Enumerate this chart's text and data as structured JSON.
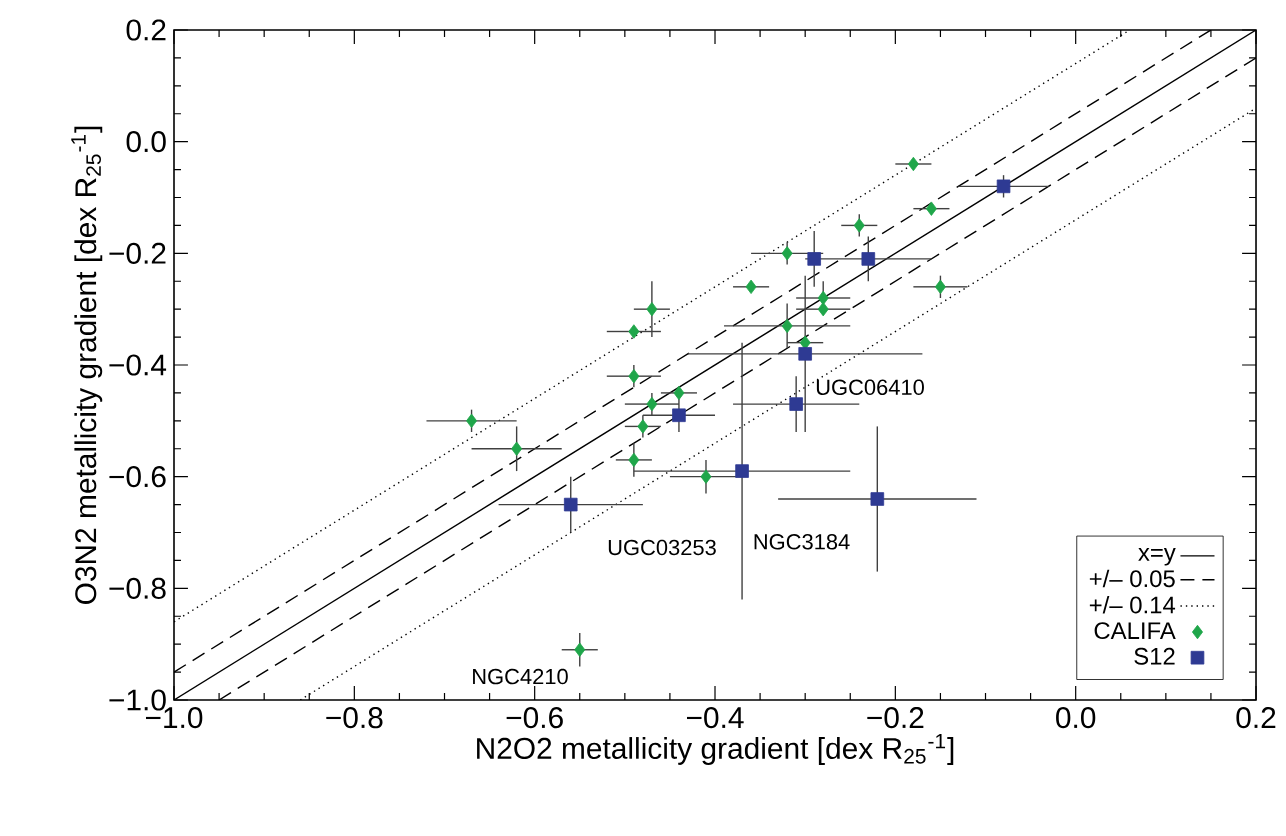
{
  "chart_data": {
    "type": "scatter",
    "xlabel": "N2O2 metallicity gradient [dex R$_{25}$$^{-1}$]",
    "ylabel": "O3N2 metallicity gradient [dex R$_{25}$$^{-1}$]",
    "xlim": [
      -1.0,
      0.2
    ],
    "ylim": [
      -1.0,
      0.2
    ],
    "xticks": [
      {
        "value": -1.0,
        "label": "−1.0"
      },
      {
        "value": -0.8,
        "label": "−0.8"
      },
      {
        "value": -0.6,
        "label": "−0.6"
      },
      {
        "value": -0.4,
        "label": "−0.4"
      },
      {
        "value": -0.2,
        "label": "−0.2"
      },
      {
        "value": 0.0,
        "label": "0.0"
      },
      {
        "value": 0.2,
        "label": "0.2"
      }
    ],
    "yticks": [
      {
        "value": -1.0,
        "label": "−1.0"
      },
      {
        "value": -0.8,
        "label": "−0.8"
      },
      {
        "value": -0.6,
        "label": "−0.6"
      },
      {
        "value": -0.4,
        "label": "−0.4"
      },
      {
        "value": -0.2,
        "label": "−0.2"
      },
      {
        "value": 0.0,
        "label": "0.0"
      },
      {
        "value": 0.2,
        "label": "0.2"
      }
    ],
    "legend": "bottom right",
    "series": [
      {
        "name": "x=y",
        "type": "line",
        "color": "#000000",
        "line_style": "solid",
        "marker": "none",
        "x": [
          -1.0,
          0.2
        ],
        "values": [
          -1.0,
          0.2
        ]
      },
      {
        "name": "+/– 0.05",
        "type": "line",
        "color": "#000000",
        "line_style": "dashed",
        "marker": "none",
        "x": [
          -1.0,
          0.15
        ],
        "values": [
          -0.95,
          0.2
        ]
      },
      {
        "type": "line",
        "color": "#000000",
        "line_style": "dashed",
        "marker": "none",
        "x": [
          -0.95,
          0.2
        ],
        "values": [
          -1.0,
          0.15
        ]
      },
      {
        "name": "+/– 0.14",
        "type": "line",
        "color": "#000000",
        "line_style": "dotted",
        "marker": "none",
        "x": [
          -1.0,
          0.06
        ],
        "values": [
          -0.86,
          0.2
        ]
      },
      {
        "type": "line",
        "color": "#000000",
        "line_style": "dotted",
        "marker": "none",
        "x": [
          -0.86,
          0.2
        ],
        "values": [
          -1.0,
          0.06
        ]
      },
      {
        "name": "CALIFA",
        "color": "#1fa64a",
        "marker": "diamond",
        "x": [
          -0.18,
          -0.16,
          -0.24,
          -0.32,
          -0.36,
          -0.15,
          -0.47,
          -0.28,
          -0.28,
          -0.49,
          -0.32,
          -0.3,
          -0.49,
          -0.44,
          -0.47,
          -0.67,
          -0.48,
          -0.62,
          -0.49,
          -0.41,
          -0.55
        ],
        "values": [
          -0.04,
          -0.12,
          -0.15,
          -0.2,
          -0.26,
          -0.26,
          -0.3,
          -0.28,
          -0.3,
          -0.34,
          -0.33,
          -0.36,
          -0.42,
          -0.45,
          -0.47,
          -0.5,
          -0.51,
          -0.55,
          -0.57,
          -0.6,
          -0.91
        ],
        "xerrors": [
          0.02,
          0.02,
          0.02,
          0.04,
          0.02,
          0.03,
          0.02,
          0.03,
          0.03,
          0.03,
          0.07,
          0.02,
          0.03,
          0.02,
          0.03,
          0.05,
          0.02,
          0.05,
          0.02,
          0.04,
          0.02
        ],
        "errors": [
          null,
          null,
          0.02,
          0.02,
          null,
          0.02,
          0.05,
          0.03,
          null,
          null,
          0.04,
          null,
          0.02,
          null,
          0.02,
          0.02,
          0.02,
          0.04,
          0.03,
          0.03,
          0.03
        ]
      },
      {
        "name": "S12",
        "color": "#2e3a93",
        "marker": "square",
        "x": [
          -0.08,
          -0.29,
          -0.23,
          -0.3,
          -0.31,
          -0.44,
          -0.56,
          -0.37,
          -0.22
        ],
        "values": [
          -0.08,
          -0.21,
          -0.21,
          -0.38,
          -0.47,
          -0.49,
          -0.65,
          -0.59,
          -0.64
        ],
        "xerrors": [
          0.05,
          null,
          0.07,
          0.13,
          0.07,
          0.04,
          0.08,
          0.12,
          0.11
        ],
        "errors": [
          0.02,
          0.05,
          0.04,
          0.14,
          0.05,
          0.03,
          0.05,
          0.23,
          0.13
        ]
      }
    ],
    "annotations": [
      {
        "text": "UGC06410",
        "x": -0.31,
        "y": -0.47
      },
      {
        "text": "NGC3184",
        "x": -0.22,
        "y": -0.64
      },
      {
        "text": "UGC03253",
        "x": -0.41,
        "y": -0.6
      },
      {
        "text": "NGC4210",
        "x": -0.55,
        "y": -0.91
      }
    ]
  }
}
